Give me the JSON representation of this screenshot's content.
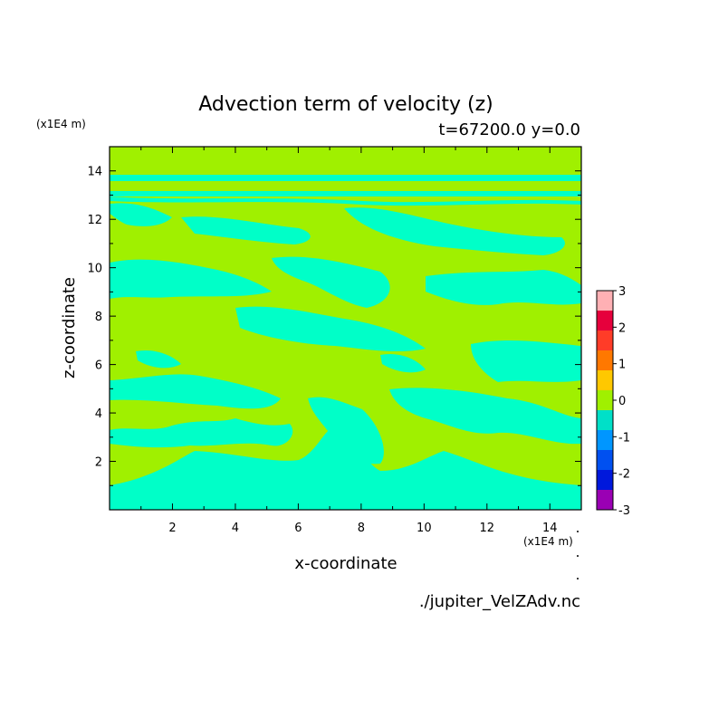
{
  "chart_data": {
    "type": "heatmap",
    "title": "Advection term of velocity (z)",
    "subtitle": "t=67200.0 y=0.0",
    "xlabel": "x-coordinate",
    "ylabel": "z-coordinate",
    "x_unit": "(x1E4 m)",
    "y_unit": "(x1E4 m)",
    "xlim": [
      0,
      15
    ],
    "ylim": [
      0,
      15
    ],
    "x_ticks": [
      "2",
      "4",
      "6",
      "8",
      "10",
      "12",
      "14"
    ],
    "y_ticks": [
      "2",
      "4",
      "6",
      "8",
      "10",
      "12",
      "14"
    ],
    "source": "./jupiter_VelZAdv.nc",
    "colorbar": {
      "levels": [
        "-3",
        "-2",
        "-1",
        "0",
        "1",
        "2",
        "3"
      ],
      "colors": [
        "#9a00b4",
        "#0018dc",
        "#0050f0",
        "#0096ff",
        "#00e0c8",
        "#a0f000",
        "#ffc800",
        "#ff7800",
        "#ff3c28",
        "#e6003c",
        "#ffb0b4"
      ]
    },
    "field": {
      "dominant_class": "0 to 0.5",
      "secondary_class": "-0.5 to 0",
      "colors": {
        "positive_small": "#a0f000",
        "negative_small": "#00ffc8"
      }
    }
  }
}
